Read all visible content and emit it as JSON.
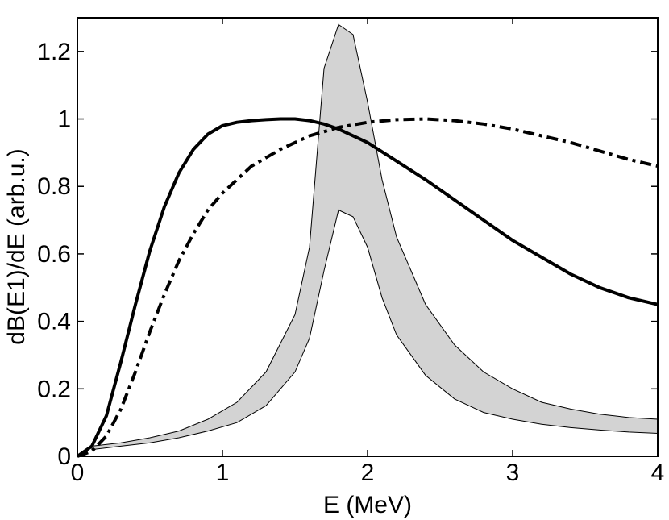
{
  "chart_data": {
    "type": "line",
    "title": "",
    "xlabel": "E (MeV)",
    "ylabel": "dB(E1)/dE (arb.u.)",
    "xlim": [
      0,
      4
    ],
    "ylim": [
      0,
      1.3
    ],
    "xticks": [
      0,
      1,
      2,
      3,
      4
    ],
    "xtick_labels": [
      "0",
      "1",
      "2",
      "3",
      "4"
    ],
    "yticks": [
      0,
      0.2,
      0.4,
      0.6,
      0.8,
      1,
      1.2
    ],
    "ytick_labels": [
      "0",
      "0.2",
      "0.4",
      "0.6",
      "0.8",
      "1",
      "1.2"
    ],
    "grid": false,
    "series": [
      {
        "name": "solid",
        "style": "solid",
        "color": "#000000",
        "x": [
          0,
          0.1,
          0.2,
          0.3,
          0.4,
          0.5,
          0.6,
          0.7,
          0.8,
          0.9,
          1.0,
          1.1,
          1.2,
          1.3,
          1.4,
          1.5,
          1.6,
          1.7,
          1.8,
          2.0,
          2.2,
          2.4,
          2.6,
          2.8,
          3.0,
          3.2,
          3.4,
          3.6,
          3.8,
          4.0
        ],
        "y": [
          0,
          0.03,
          0.12,
          0.28,
          0.45,
          0.61,
          0.74,
          0.84,
          0.91,
          0.955,
          0.98,
          0.99,
          0.995,
          0.998,
          1.0,
          1.0,
          0.995,
          0.985,
          0.97,
          0.93,
          0.875,
          0.82,
          0.76,
          0.7,
          0.64,
          0.59,
          0.54,
          0.5,
          0.47,
          0.45
        ]
      },
      {
        "name": "dash-dot",
        "style": "dashdot",
        "color": "#000000",
        "x": [
          0,
          0.1,
          0.2,
          0.3,
          0.4,
          0.5,
          0.6,
          0.7,
          0.8,
          0.9,
          1.0,
          1.2,
          1.4,
          1.6,
          1.8,
          2.0,
          2.2,
          2.4,
          2.6,
          2.8,
          3.0,
          3.2,
          3.4,
          3.6,
          3.8,
          4.0
        ],
        "y": [
          0,
          0.015,
          0.06,
          0.14,
          0.25,
          0.37,
          0.48,
          0.58,
          0.66,
          0.73,
          0.78,
          0.86,
          0.91,
          0.95,
          0.975,
          0.99,
          0.998,
          1.0,
          0.995,
          0.985,
          0.97,
          0.95,
          0.93,
          0.905,
          0.88,
          0.86
        ]
      }
    ],
    "band": {
      "name": "shaded band",
      "fill": "#d3d3d3",
      "x": [
        0.1,
        0.3,
        0.5,
        0.7,
        0.9,
        1.1,
        1.3,
        1.5,
        1.6,
        1.7,
        1.8,
        1.9,
        2.0,
        2.1,
        2.2,
        2.4,
        2.6,
        2.8,
        3.0,
        3.2,
        3.4,
        3.6,
        3.8,
        4.0
      ],
      "upper": [
        0.03,
        0.04,
        0.055,
        0.075,
        0.11,
        0.16,
        0.25,
        0.42,
        0.62,
        1.15,
        1.28,
        1.25,
        1.05,
        0.82,
        0.65,
        0.45,
        0.33,
        0.25,
        0.2,
        0.16,
        0.14,
        0.125,
        0.115,
        0.11
      ],
      "lower": [
        0.02,
        0.03,
        0.04,
        0.055,
        0.075,
        0.1,
        0.15,
        0.25,
        0.35,
        0.55,
        0.73,
        0.71,
        0.62,
        0.47,
        0.36,
        0.24,
        0.17,
        0.13,
        0.11,
        0.095,
        0.085,
        0.078,
        0.072,
        0.068
      ]
    }
  }
}
